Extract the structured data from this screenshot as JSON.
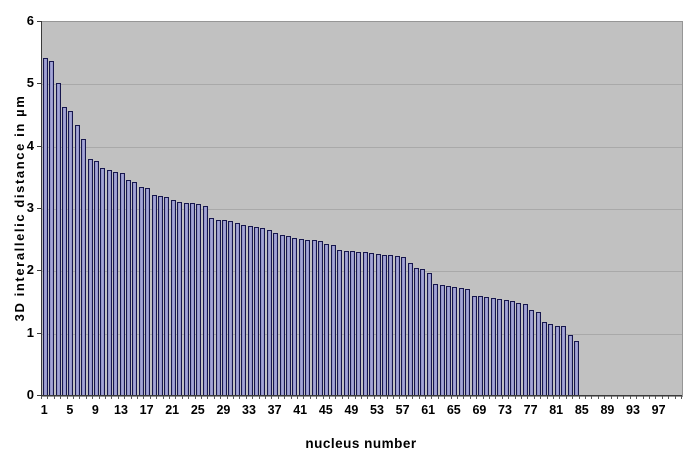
{
  "chart_data": {
    "type": "bar",
    "title": "",
    "xlabel": "nucleus number",
    "ylabel": "3D interallelic distance in µm",
    "plot_bg": "#c1c1c1",
    "page_bg": "#ffffff",
    "bar_fill": "#9697cb",
    "bar_border": "#16164d",
    "gridline_color": "#a9a9a9",
    "grid": true,
    "legend": false,
    "ylim": [
      0,
      6
    ],
    "y_ticks": [
      0,
      1,
      2,
      3,
      4,
      5,
      6
    ],
    "x_axis_slots": 100,
    "x_tick_labels": [
      "1",
      "5",
      "9",
      "13",
      "17",
      "21",
      "25",
      "29",
      "33",
      "37",
      "41",
      "45",
      "49",
      "53",
      "57",
      "61",
      "65",
      "69",
      "73",
      "77",
      "81",
      "85",
      "89",
      "93",
      "97"
    ],
    "x_tick_label_step": 4,
    "categories": [
      1,
      2,
      3,
      4,
      5,
      6,
      7,
      8,
      9,
      10,
      11,
      12,
      13,
      14,
      15,
      16,
      17,
      18,
      19,
      20,
      21,
      22,
      23,
      24,
      25,
      26,
      27,
      28,
      29,
      30,
      31,
      32,
      33,
      34,
      35,
      36,
      37,
      38,
      39,
      40,
      41,
      42,
      43,
      44,
      45,
      46,
      47,
      48,
      49,
      50,
      51,
      52,
      53,
      54,
      55,
      56,
      57,
      58,
      59,
      60,
      61,
      62,
      63,
      64,
      65,
      66,
      67,
      68,
      69,
      70,
      71,
      72,
      73,
      74,
      75,
      76,
      77,
      78,
      79,
      80,
      81,
      82,
      83,
      84
    ],
    "values": [
      5.42,
      5.38,
      5.02,
      4.63,
      4.58,
      4.34,
      4.12,
      3.81,
      3.77,
      3.66,
      3.63,
      3.6,
      3.58,
      3.47,
      3.44,
      3.36,
      3.34,
      3.23,
      3.21,
      3.19,
      3.14,
      3.12,
      3.1,
      3.09,
      3.08,
      3.05,
      2.85,
      2.83,
      2.82,
      2.81,
      2.77,
      2.74,
      2.72,
      2.71,
      2.69,
      2.67,
      2.62,
      2.59,
      2.56,
      2.54,
      2.52,
      2.51,
      2.5,
      2.48,
      2.44,
      2.43,
      2.35,
      2.33,
      2.32,
      2.31,
      2.31,
      2.3,
      2.28,
      2.27,
      2.26,
      2.24,
      2.23,
      2.13,
      2.06,
      2.04,
      1.98,
      1.8,
      1.78,
      1.76,
      1.75,
      1.74,
      1.72,
      1.61,
      1.6,
      1.59,
      1.58,
      1.56,
      1.54,
      1.53,
      1.5,
      1.47,
      1.38,
      1.35,
      1.18,
      1.16,
      1.13,
      1.12,
      0.98,
      0.88
    ]
  }
}
